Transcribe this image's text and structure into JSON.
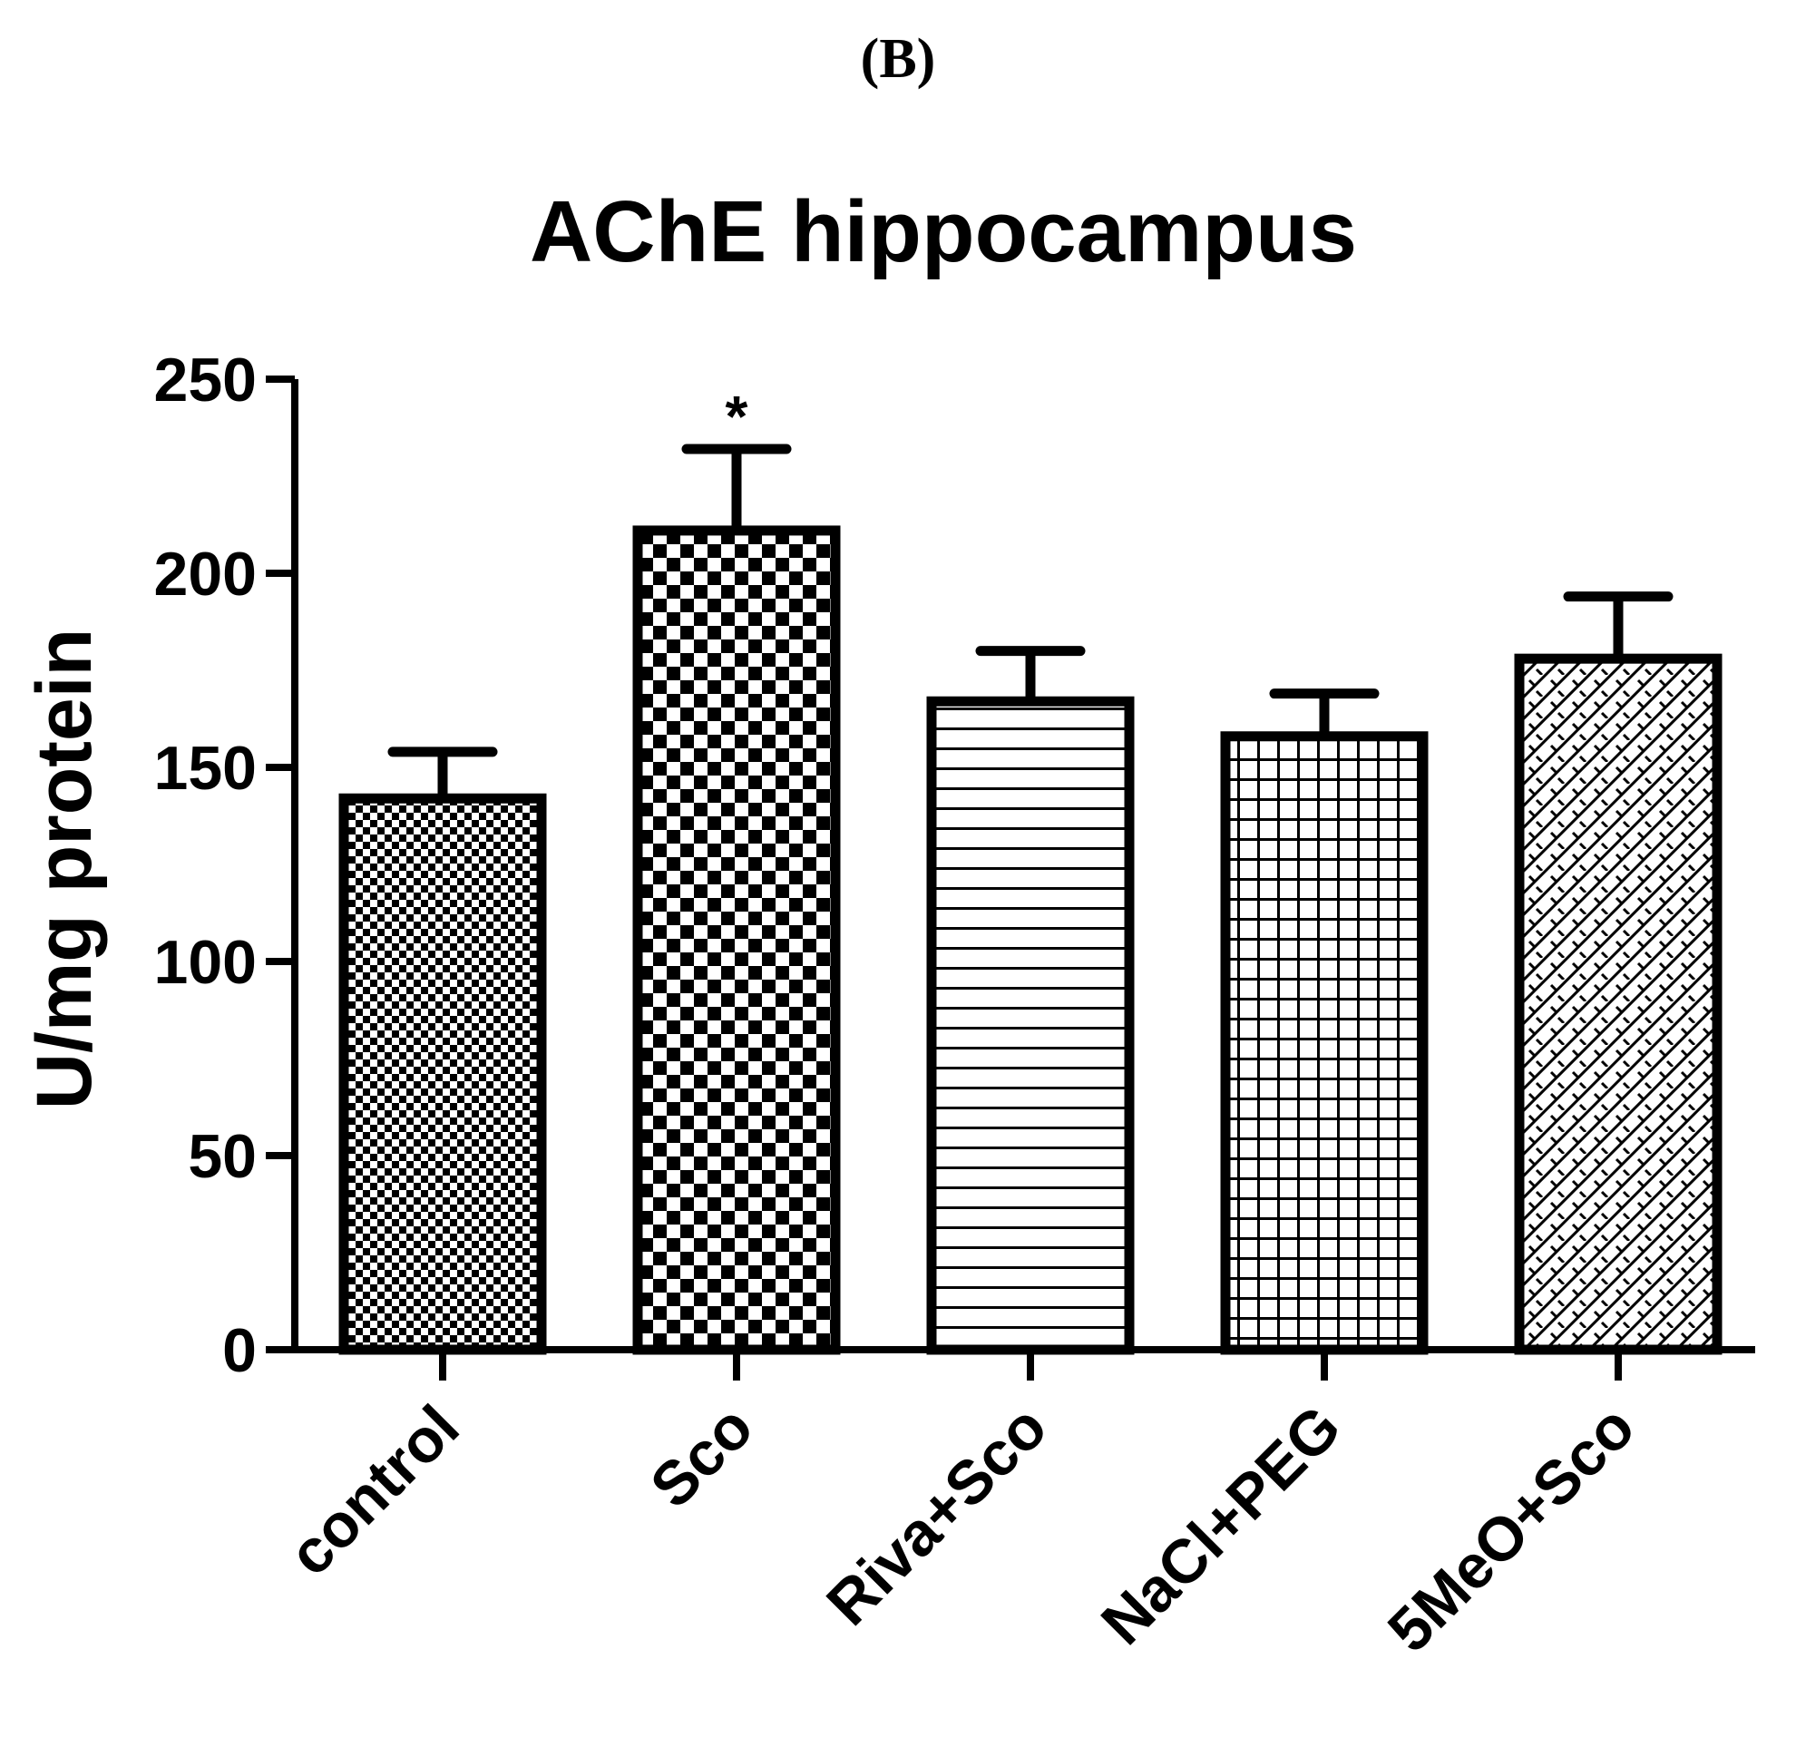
{
  "panel_label": "(B)",
  "chart_data": {
    "type": "bar",
    "title": "AChE hippocampus",
    "xlabel": "",
    "ylabel": "U/mg protein",
    "ylim": [
      0,
      250
    ],
    "yticks": [
      "0",
      "50",
      "100",
      "150",
      "200",
      "250"
    ],
    "categories": [
      "control",
      "Sco",
      "Riva+Sco",
      "NaCl+PEG",
      "5MeO+Sco"
    ],
    "values": [
      142,
      211,
      167,
      158,
      178
    ],
    "errors": [
      12,
      21,
      13,
      11,
      16
    ],
    "patterns": [
      "fine-checker",
      "coarse-checker",
      "horizontal-lines",
      "grid",
      "diagonal-brick"
    ],
    "annotations": [
      "",
      "*",
      "",
      "",
      ""
    ],
    "grid": false,
    "legend": "none"
  }
}
